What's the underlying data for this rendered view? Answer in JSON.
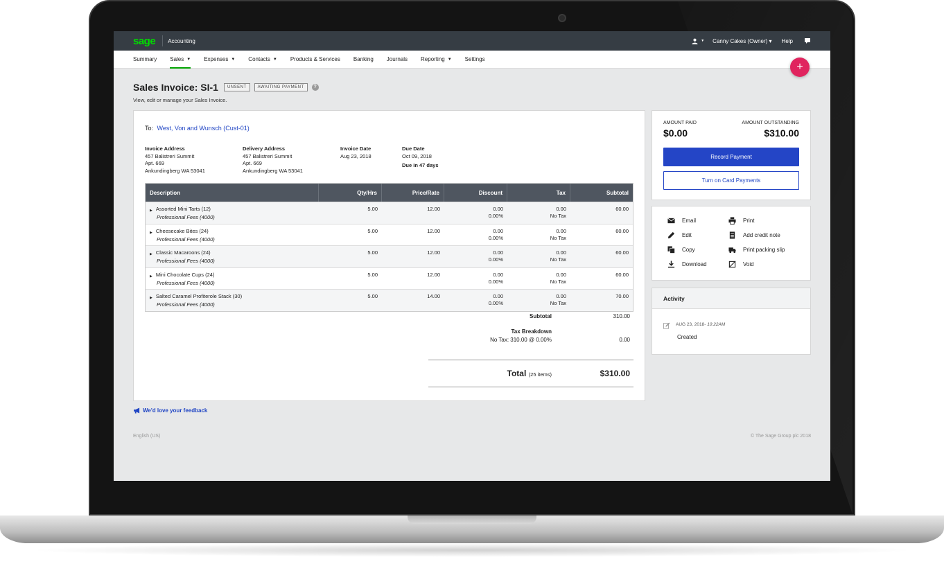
{
  "topbar": {
    "logo": "sage",
    "product": "Accounting",
    "owner": "Canny Cakes (Owner) ▾",
    "help": "Help"
  },
  "nav": [
    {
      "label": "Summary",
      "caret": ""
    },
    {
      "label": "Sales",
      "caret": "▼"
    },
    {
      "label": "Expenses",
      "caret": "▼"
    },
    {
      "label": "Contacts",
      "caret": "▼"
    },
    {
      "label": "Products & Services",
      "caret": ""
    },
    {
      "label": "Banking",
      "caret": ""
    },
    {
      "label": "Journals",
      "caret": ""
    },
    {
      "label": "Reporting",
      "caret": "▼"
    },
    {
      "label": "Settings",
      "caret": ""
    }
  ],
  "fab": "+",
  "page": {
    "title": "Sales Invoice: SI-1",
    "badges": [
      "UNSENT",
      "AWAITING PAYMENT"
    ],
    "help": "?",
    "subtitle": "View, edit or manage your Sales Invoice."
  },
  "invoice": {
    "to_label": "To:",
    "customer": "West, Von and Wunsch (Cust-01)",
    "invoice_address": {
      "heading": "Invoice Address",
      "lines": [
        "457 Balistreri Summit",
        "Apt. 669",
        "Ankundingberg WA 53041"
      ]
    },
    "delivery_address": {
      "heading": "Delivery Address",
      "lines": [
        "457 Balistreri Summit",
        "Apt. 669",
        "Ankundingberg WA 53041"
      ]
    },
    "invoice_date": {
      "heading": "Invoice Date",
      "value": "Aug 23, 2018"
    },
    "due_date": {
      "heading": "Due Date",
      "value": "Oct 09, 2018",
      "note": "Due in 47 days"
    },
    "columns": [
      "Description",
      "Qty/Hrs",
      "Price/Rate",
      "Discount",
      "Tax",
      "Subtotal"
    ],
    "rows": [
      {
        "name": "Assorted Mini Tarts (12)",
        "ledger": "Professional Fees (4000)",
        "qty": "5.00",
        "price": "12.00",
        "discount": "0.00",
        "discount_pct": "0.00%",
        "tax": "0.00",
        "tax_rate": "No Tax",
        "subtotal": "60.00"
      },
      {
        "name": "Cheesecake Bites (24)",
        "ledger": "Professional Fees (4000)",
        "qty": "5.00",
        "price": "12.00",
        "discount": "0.00",
        "discount_pct": "0.00%",
        "tax": "0.00",
        "tax_rate": "No Tax",
        "subtotal": "60.00"
      },
      {
        "name": "Classic Macaroons (24)",
        "ledger": "Professional Fees (4000)",
        "qty": "5.00",
        "price": "12.00",
        "discount": "0.00",
        "discount_pct": "0.00%",
        "tax": "0.00",
        "tax_rate": "No Tax",
        "subtotal": "60.00"
      },
      {
        "name": "Mini Chocolate Cups (24)",
        "ledger": "Professional Fees (4000)",
        "qty": "5.00",
        "price": "12.00",
        "discount": "0.00",
        "discount_pct": "0.00%",
        "tax": "0.00",
        "tax_rate": "No Tax",
        "subtotal": "60.00"
      },
      {
        "name": "Salted Caramel Profiterole Stack (30)",
        "ledger": "Professional Fees (4000)",
        "qty": "5.00",
        "price": "14.00",
        "discount": "0.00",
        "discount_pct": "0.00%",
        "tax": "0.00",
        "tax_rate": "No Tax",
        "subtotal": "70.00"
      }
    ],
    "subtotal_label": "Subtotal",
    "subtotal": "310.00",
    "tax_breakdown_label": "Tax Breakdown",
    "tax_line_label": "No Tax: 310.00 @ 0.00%",
    "tax_line_value": "0.00",
    "total_label": "Total",
    "total_items": "(25 items)",
    "total": "$310.00"
  },
  "payment": {
    "paid_label": "AMOUNT PAID",
    "paid": "$0.00",
    "outstanding_label": "AMOUNT OUTSTANDING",
    "outstanding": "$310.00",
    "record_button": "Record Payment",
    "card_button": "Turn on Card Payments"
  },
  "actions": {
    "email": "Email",
    "print": "Print",
    "edit": "Edit",
    "credit_note": "Add credit note",
    "copy": "Copy",
    "packing_slip": "Print packing slip",
    "download": "Download",
    "void": "Void"
  },
  "activity": {
    "heading": "Activity",
    "date": "AUG 23, 2018",
    "time": "10:22AM",
    "event": "Created"
  },
  "footer": {
    "feedback": "We'd love your feedback",
    "language": "English (US)",
    "copyright": "© The Sage Group plc 2018"
  },
  "colors": {
    "brand_green": "#00dc00",
    "primary_blue": "#2445c6",
    "fab_pink": "#e0245e",
    "topbar": "#363d44",
    "table_header": "#4f5660"
  }
}
